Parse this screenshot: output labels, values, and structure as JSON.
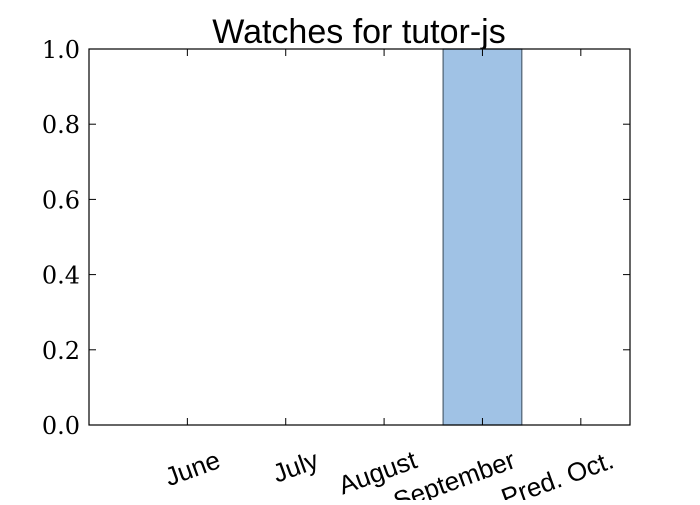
{
  "chart_data": {
    "type": "bar",
    "title": "Watches for tutor-js",
    "categories": [
      "June",
      "July",
      "August",
      "September",
      "Pred. Oct."
    ],
    "values": [
      0,
      0,
      0,
      1.0,
      0
    ],
    "ylim": [
      0,
      1.0
    ],
    "yticks": [
      "0.0",
      "0.2",
      "0.4",
      "0.6",
      "0.8",
      "1.0"
    ],
    "xlabel": "",
    "ylabel": "",
    "grid": false,
    "bar_color": "#a0c2e5",
    "bar_edge_color": "#4d5f70"
  }
}
